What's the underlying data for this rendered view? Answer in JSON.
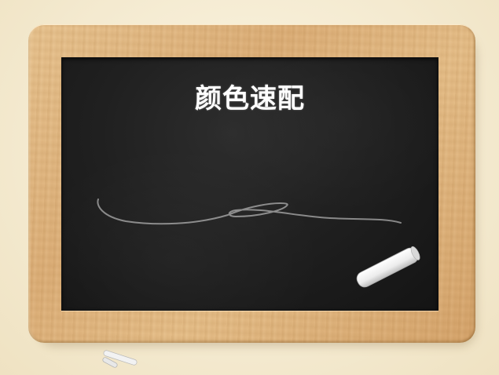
{
  "slide": {
    "title": "颜色速配"
  },
  "icons": {
    "chalk_on_board": "chalk-piece-icon",
    "chalk_pieces_below": "chalk-pieces-icon",
    "scribble": "chalk-scribble"
  },
  "colors": {
    "board": "#1f1f1f",
    "frame_wood": "#ddb07a",
    "background": "#f4ead0",
    "title_text": "#ffffff"
  }
}
